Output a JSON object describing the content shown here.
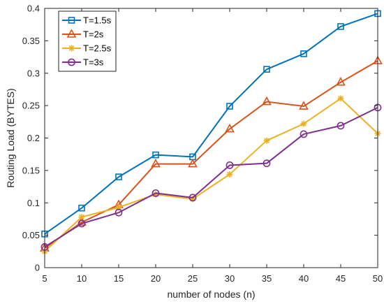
{
  "chart_data": {
    "type": "line",
    "title": "",
    "xlabel": "number of nodes (n)",
    "ylabel": "Routing Load (BYTES)",
    "x": [
      5,
      10,
      15,
      20,
      25,
      30,
      35,
      40,
      45,
      50
    ],
    "xlim": [
      5,
      50
    ],
    "ylim": [
      0,
      0.4
    ],
    "xticks": [
      "5",
      "10",
      "15",
      "20",
      "25",
      "30",
      "35",
      "40",
      "45",
      "50"
    ],
    "yticks": [
      "0",
      "0.05",
      "0.1",
      "0.15",
      "0.2",
      "0.25",
      "0.3",
      "0.35",
      "0.4"
    ],
    "grid": false,
    "legend_position": "top-left",
    "series": [
      {
        "name": "T=1.5s",
        "color": "#0072BD",
        "marker": "square",
        "values": [
          0.052,
          0.092,
          0.14,
          0.174,
          0.171,
          0.249,
          0.306,
          0.33,
          0.372,
          0.392
        ]
      },
      {
        "name": "T=2s",
        "color": "#D95319",
        "marker": "triangle",
        "values": [
          0.03,
          0.07,
          0.097,
          0.16,
          0.16,
          0.214,
          0.256,
          0.249,
          0.286,
          0.319
        ]
      },
      {
        "name": "T=2.5s",
        "color": "#EDB120",
        "marker": "asterisk",
        "values": [
          0.025,
          0.078,
          0.093,
          0.113,
          0.106,
          0.144,
          0.196,
          0.222,
          0.261,
          0.207
        ]
      },
      {
        "name": "T=3s",
        "color": "#7E2F8E",
        "marker": "circle",
        "values": [
          0.032,
          0.068,
          0.085,
          0.115,
          0.108,
          0.158,
          0.161,
          0.206,
          0.219,
          0.247
        ]
      }
    ]
  }
}
